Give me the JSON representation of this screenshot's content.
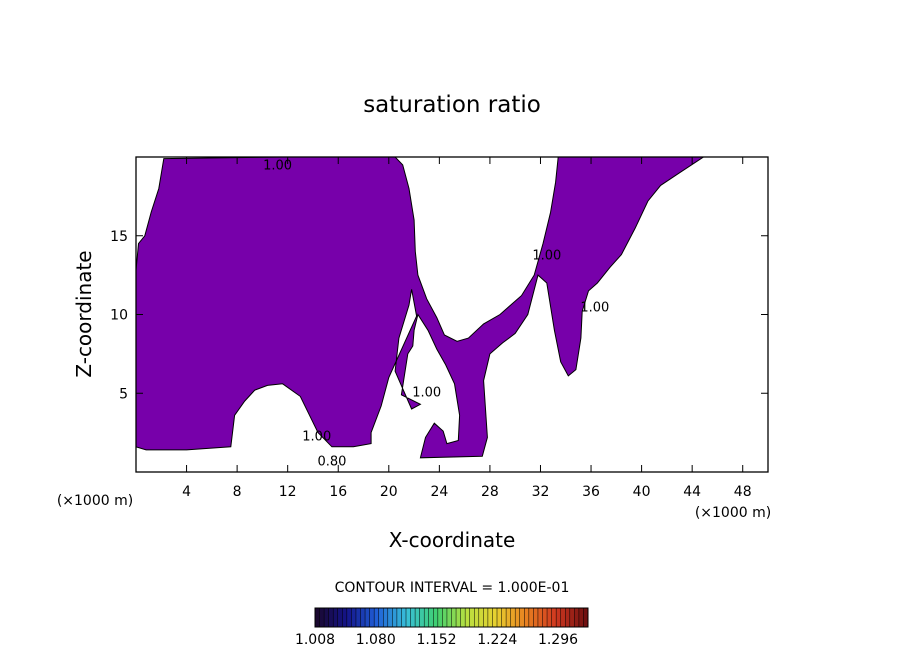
{
  "chart_data": {
    "type": "contour",
    "title": "saturation ratio",
    "xlabel": "X-coordinate",
    "ylabel": "Z-coordinate",
    "x_unit": "(×1000 m)",
    "xlim": [
      0,
      50
    ],
    "ylim": [
      0,
      20
    ],
    "x_ticks": [
      4,
      8,
      12,
      16,
      20,
      24,
      28,
      32,
      36,
      40,
      44,
      48
    ],
    "y_ticks": [
      5,
      10,
      15
    ],
    "contour_interval_text": "CONTOUR INTERVAL = 1.000E-01",
    "contour_labels": [
      {
        "text": "1.00",
        "x": 11.2,
        "z": 19.2
      },
      {
        "text": "1.00",
        "x": 32.5,
        "z": 13.5
      },
      {
        "text": "1.00",
        "x": 36.3,
        "z": 10.2
      },
      {
        "text": "1.00",
        "x": 23.0,
        "z": 4.8
      },
      {
        "text": "1.00",
        "x": 14.3,
        "z": 2.0
      },
      {
        "text": "0.80",
        "x": 15.5,
        "z": 0.4
      }
    ],
    "fill_color": "#7700aa",
    "colorbar": {
      "ticks": [
        "1.008",
        "1.080",
        "1.152",
        "1.224",
        "1.296"
      ],
      "colors": [
        "#1a0830",
        "#14148a",
        "#2060d8",
        "#38c0d8",
        "#40d070",
        "#b8e040",
        "#e8d030",
        "#e88020",
        "#d03820",
        "#701010"
      ]
    },
    "supersaturated_regions": [
      [
        [
          0,
          9
        ],
        [
          0,
          12.8
        ],
        [
          0.2,
          14.5
        ],
        [
          0.7,
          15
        ],
        [
          1.2,
          16.5
        ],
        [
          1.8,
          18
        ],
        [
          2.2,
          19.9
        ],
        [
          11.5,
          20
        ],
        [
          20.5,
          20
        ],
        [
          21.1,
          19.5
        ],
        [
          21.6,
          18
        ],
        [
          22,
          16
        ],
        [
          22.1,
          14
        ],
        [
          22.3,
          12.5
        ],
        [
          23,
          11
        ],
        [
          23.8,
          9.8
        ],
        [
          24.4,
          8.7
        ],
        [
          25.4,
          8.3
        ],
        [
          26.3,
          8.5
        ],
        [
          27.5,
          9.4
        ],
        [
          28.8,
          10
        ],
        [
          30.5,
          11.2
        ],
        [
          31.5,
          12.5
        ],
        [
          32.2,
          14.5
        ],
        [
          32.8,
          16.5
        ],
        [
          33.2,
          18.4
        ],
        [
          33.4,
          20
        ],
        [
          44.9,
          20
        ],
        [
          43,
          19
        ],
        [
          41.5,
          18.2
        ],
        [
          40.5,
          17.2
        ],
        [
          39.5,
          15.5
        ],
        [
          38.4,
          13.8
        ],
        [
          37.5,
          13
        ],
        [
          36.5,
          12
        ],
        [
          35.8,
          11.5
        ],
        [
          35.3,
          10.2
        ],
        [
          35.2,
          8.5
        ],
        [
          34.8,
          6.5
        ],
        [
          34.2,
          6.1
        ],
        [
          33.6,
          7
        ],
        [
          33.1,
          9
        ],
        [
          32.5,
          12
        ],
        [
          31.8,
          12.5
        ],
        [
          31,
          10
        ],
        [
          30,
          8.8
        ],
        [
          29,
          8.2
        ],
        [
          28,
          7.5
        ],
        [
          27.5,
          5.8
        ],
        [
          27.8,
          2.2
        ],
        [
          27.4,
          1.0
        ],
        [
          22.5,
          0.9
        ],
        [
          22.9,
          2.2
        ],
        [
          23.6,
          3.1
        ],
        [
          24.3,
          2.6
        ],
        [
          24.6,
          1.8
        ],
        [
          25.5,
          2.0
        ],
        [
          25.6,
          3.6
        ],
        [
          25.2,
          5.6
        ],
        [
          24.5,
          6.8
        ],
        [
          23.8,
          7.8
        ],
        [
          23.1,
          9
        ],
        [
          22.3,
          10
        ],
        [
          22,
          9
        ],
        [
          21.9,
          8
        ],
        [
          21.5,
          7.5
        ],
        [
          21.0,
          4.9
        ],
        [
          22.5,
          4.3
        ],
        [
          21.8,
          4.0
        ],
        [
          20.5,
          6.4
        ],
        [
          20.8,
          8.5
        ],
        [
          21.6,
          10.6
        ],
        [
          21.8,
          11.6
        ],
        [
          22.2,
          9.9
        ],
        [
          20.0,
          6.0
        ],
        [
          19.4,
          4.2
        ],
        [
          18.6,
          2.5
        ],
        [
          18.6,
          1.8
        ],
        [
          17.2,
          1.6
        ],
        [
          15.5,
          1.6
        ],
        [
          14.4,
          2.5
        ],
        [
          13.0,
          4.8
        ],
        [
          11.6,
          5.6
        ],
        [
          10.4,
          5.5
        ],
        [
          9.4,
          5.2
        ],
        [
          8.6,
          4.5
        ],
        [
          7.8,
          3.6
        ],
        [
          7.5,
          1.6
        ],
        [
          4.0,
          1.4
        ],
        [
          0.8,
          1.4
        ],
        [
          0,
          1.6
        ]
      ]
    ]
  }
}
